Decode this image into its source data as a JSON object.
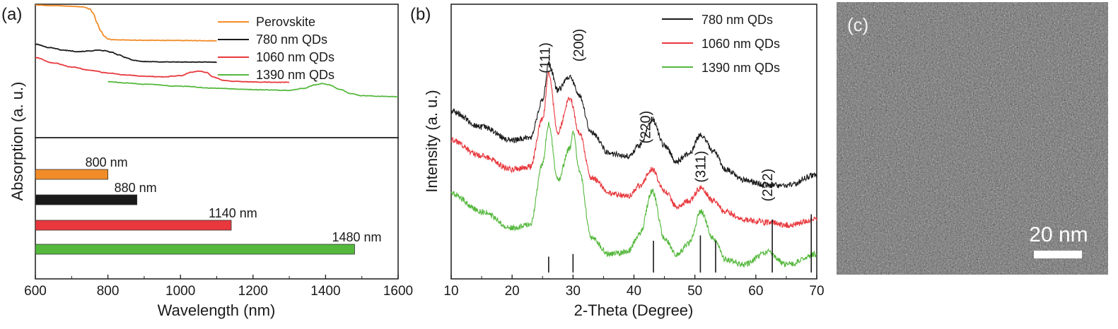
{
  "chart_data": [
    {
      "panel": "(a)",
      "type": "line",
      "xlabel": "Wavelength (nm)",
      "ylabel": "Absorption (a. u.)",
      "xlim": [
        600,
        1600
      ],
      "xticks": [
        "600",
        "800",
        "1000",
        "1200",
        "1400",
        "1600"
      ],
      "legend_position": "top-right",
      "series": [
        {
          "name": "Perovskite",
          "color": "#f28c28",
          "x": [
            600,
            650,
            700,
            730,
            750,
            760,
            770,
            780,
            790,
            800,
            810,
            830,
            900,
            1000,
            1100
          ],
          "y": [
            0.995,
            0.99,
            0.985,
            0.98,
            0.965,
            0.93,
            0.86,
            0.8,
            0.76,
            0.74,
            0.735,
            0.733,
            0.73,
            0.728,
            0.726
          ]
        },
        {
          "name": "780 nm QDs",
          "color": "#1a1a1a",
          "x": [
            600,
            640,
            680,
            720,
            750,
            770,
            790,
            810,
            830,
            850,
            870,
            900,
            950,
            1000,
            1100
          ],
          "y": [
            0.7,
            0.675,
            0.655,
            0.645,
            0.65,
            0.655,
            0.652,
            0.64,
            0.62,
            0.6,
            0.58,
            0.57,
            0.568,
            0.567,
            0.566
          ]
        },
        {
          "name": "1060 nm QDs",
          "color": "#e8383d",
          "x": [
            600,
            650,
            700,
            750,
            800,
            850,
            900,
            950,
            1000,
            1030,
            1050,
            1070,
            1090,
            1120,
            1150,
            1200,
            1250,
            1300
          ],
          "y": [
            0.6,
            0.56,
            0.53,
            0.505,
            0.485,
            0.47,
            0.46,
            0.455,
            0.465,
            0.49,
            0.5,
            0.49,
            0.455,
            0.43,
            0.422,
            0.418,
            0.416,
            0.415
          ]
        },
        {
          "name": "1390 nm QDs",
          "color": "#55b83d",
          "x": [
            800,
            850,
            900,
            1000,
            1100,
            1200,
            1300,
            1340,
            1370,
            1390,
            1410,
            1440,
            1470,
            1500,
            1550,
            1600
          ],
          "y": [
            0.42,
            0.41,
            0.4,
            0.385,
            0.37,
            0.36,
            0.355,
            0.37,
            0.395,
            0.405,
            0.395,
            0.36,
            0.33,
            0.315,
            0.31,
            0.308
          ]
        }
      ],
      "bars": [
        {
          "value": 800,
          "label": "800 nm",
          "color": "#f28c28"
        },
        {
          "value": 880,
          "label": "880 nm",
          "color": "#1a1a1a"
        },
        {
          "value": 1140,
          "label": "1140 nm",
          "color": "#e8383d"
        },
        {
          "value": 1480,
          "label": "1480 nm",
          "color": "#55b83d"
        }
      ]
    },
    {
      "panel": "(b)",
      "type": "line",
      "xlabel": "2-Theta (Degree)",
      "ylabel": "Intensity (a. u.)",
      "xlim": [
        10,
        70
      ],
      "xticks": [
        "10",
        "20",
        "30",
        "40",
        "50",
        "60",
        "70"
      ],
      "legend_position": "top-right",
      "series": [
        {
          "name": "780 nm QDs",
          "color": "#1a1a1a",
          "x": [
            10,
            15,
            20,
            23,
            25,
            26,
            27.5,
            29.5,
            31,
            33,
            36,
            39,
            41,
            43,
            45,
            47,
            49,
            51,
            53,
            55,
            58,
            62,
            65,
            70
          ],
          "y": [
            0.58,
            0.52,
            0.47,
            0.48,
            0.62,
            0.76,
            0.66,
            0.71,
            0.64,
            0.5,
            0.42,
            0.41,
            0.45,
            0.55,
            0.45,
            0.39,
            0.42,
            0.49,
            0.43,
            0.36,
            0.32,
            0.3,
            0.3,
            0.34
          ]
        },
        {
          "name": "1060 nm QDs",
          "color": "#e8383d",
          "x": [
            10,
            15,
            20,
            23,
            25,
            26,
            27.5,
            29.5,
            31,
            33,
            36,
            39,
            41,
            43,
            45,
            47,
            49,
            51,
            53,
            55,
            58,
            62,
            65,
            70
          ],
          "y": [
            0.47,
            0.41,
            0.36,
            0.37,
            0.55,
            0.72,
            0.5,
            0.63,
            0.5,
            0.33,
            0.27,
            0.26,
            0.3,
            0.36,
            0.28,
            0.22,
            0.24,
            0.29,
            0.24,
            0.2,
            0.17,
            0.16,
            0.15,
            0.17
          ]
        },
        {
          "name": "1390 nm QDs",
          "color": "#55b83d",
          "x": [
            10,
            15,
            20,
            23,
            25,
            26,
            27.5,
            29.5,
            30,
            31,
            33,
            36,
            39,
            41,
            43,
            45,
            47,
            49,
            51,
            53,
            55,
            58,
            62,
            65,
            70
          ],
          "y": [
            0.27,
            0.2,
            0.14,
            0.15,
            0.38,
            0.53,
            0.32,
            0.44,
            0.5,
            0.36,
            0.1,
            0.04,
            0.05,
            0.12,
            0.28,
            0.1,
            0.04,
            0.08,
            0.2,
            0.1,
            0.02,
            0.0,
            0.05,
            0.0,
            0.04
          ]
        }
      ],
      "peak_labels": [
        {
          "text": "(111)",
          "x": 25.5
        },
        {
          "text": "(200)",
          "x": 31.0
        },
        {
          "text": "(220)",
          "x": 42.0
        },
        {
          "text": "(311)",
          "x": 51.0
        },
        {
          "text": "(222)",
          "x": 62.0
        }
      ],
      "reference_lines": [
        {
          "x": 26.0,
          "h": 0.06
        },
        {
          "x": 30.0,
          "h": 0.07
        },
        {
          "x": 43.2,
          "h": 0.12
        },
        {
          "x": 50.9,
          "h": 0.14
        },
        {
          "x": 53.4,
          "h": 0.12
        },
        {
          "x": 62.7,
          "h": 0.2
        },
        {
          "x": 69.1,
          "h": 0.22
        }
      ]
    }
  ],
  "tem": {
    "panel": "(c)",
    "scale_bar_label": "20 nm"
  }
}
